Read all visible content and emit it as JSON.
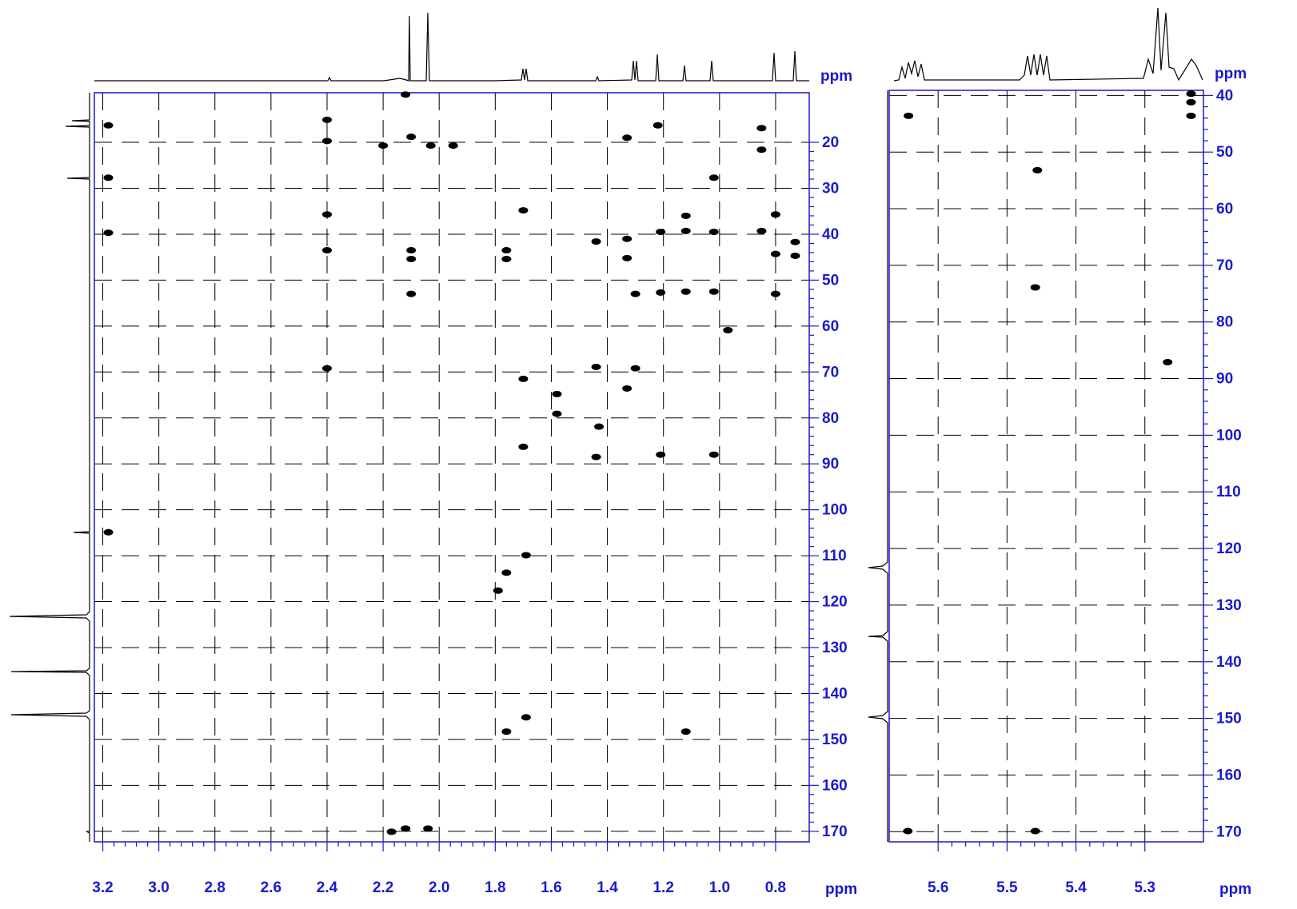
{
  "chart_data": [
    {
      "type": "scatter",
      "color": "#000000",
      "axis_color": "#1a1acc",
      "grid": true,
      "x_label": "ppm",
      "y_label": "ppm",
      "xlim": [
        3.23,
        0.68
      ],
      "ylim": [
        172.3,
        9.2
      ],
      "xticks": [
        3.2,
        {
          "value": 3,
          "label": "3.0"
        },
        2.8,
        2.6,
        2.4,
        2.2,
        {
          "value": 2,
          "label": "2.0"
        },
        1.8,
        1.6,
        1.4,
        1.2,
        {
          "value": 1,
          "label": "1.0"
        },
        0.8
      ],
      "yticks": [
        20,
        30,
        40,
        50,
        60,
        70,
        80,
        90,
        100,
        110,
        120,
        130,
        140,
        150,
        160,
        170
      ],
      "x": [
        3.18,
        3.18,
        3.18,
        3.18,
        2.4,
        2.4,
        2.4,
        2.4,
        2.4,
        2.12,
        2.1,
        2.1,
        2.1,
        2.1,
        2.2,
        2.03,
        1.95,
        1.76,
        1.76,
        1.7,
        1.7,
        1.7,
        1.69,
        1.76,
        1.79,
        1.76,
        1.69,
        2.12,
        2.04,
        2.17,
        1.44,
        1.44,
        1.43,
        1.44,
        1.58,
        1.58,
        1.33,
        1.33,
        1.33,
        1.33,
        1.3,
        1.3,
        1.22,
        1.21,
        1.21,
        1.21,
        1.12,
        1.12,
        1.12,
        1.12,
        1.02,
        1.02,
        1.02,
        1.02,
        0.85,
        0.85,
        0.85,
        0.8,
        0.8,
        0.8,
        0.73,
        0.73,
        0.97
      ],
      "y": [
        16.3,
        27.7,
        39.7,
        104.9,
        15.1,
        19.7,
        35.7,
        43.5,
        69.2,
        9.6,
        18.8,
        43.5,
        45.4,
        53.0,
        20.7,
        20.7,
        20.7,
        43.5,
        45.4,
        34.8,
        71.5,
        86.3,
        109.9,
        113.7,
        117.6,
        148.3,
        145.2,
        169.4,
        169.4,
        170.1,
        68.9,
        41.6,
        81.9,
        88.5,
        74.8,
        79.1,
        41.0,
        45.2,
        19.0,
        73.6,
        53.0,
        69.2,
        16.3,
        39.5,
        52.7,
        88.0,
        36.0,
        39.3,
        52.5,
        148.3,
        27.7,
        39.5,
        52.5,
        88.0,
        16.9,
        21.6,
        39.3,
        35.7,
        44.3,
        53.0,
        41.7,
        44.7,
        60.9
      ]
    },
    {
      "type": "scatter",
      "color": "#000000",
      "axis_color": "#1a1acc",
      "grid": true,
      "x_label": "ppm",
      "y_label": "ppm",
      "xlim": [
        5.671,
        5.215
      ],
      "ylim": [
        171.8,
        39.1
      ],
      "xticks": [
        5.6,
        5.5,
        5.4,
        5.3
      ],
      "yticks": [
        40,
        50,
        60,
        70,
        80,
        90,
        100,
        110,
        120,
        130,
        140,
        150,
        160,
        170
      ],
      "x": [
        5.643,
        5.233,
        5.233,
        5.233,
        5.456,
        5.459,
        5.267,
        5.644,
        5.459
      ],
      "y": [
        43.6,
        39.7,
        41.2,
        43.6,
        53.2,
        73.9,
        87.1,
        169.9,
        169.9
      ]
    }
  ]
}
